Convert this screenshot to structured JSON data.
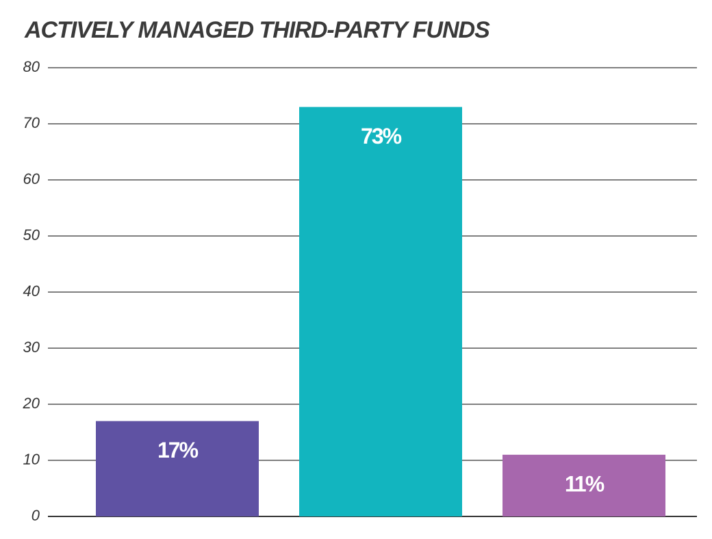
{
  "chart_data": {
    "type": "bar",
    "title": "ACTIVELY MANAGED THIRD-PARTY FUNDS",
    "categories": [
      null,
      null,
      null
    ],
    "values": [
      17,
      73,
      11
    ],
    "value_labels": [
      "17%",
      "73%",
      "11%"
    ],
    "colors": [
      "#5f52a3",
      "#12b5bf",
      "#a767ad"
    ],
    "ylim": [
      0,
      80
    ],
    "yticks": [
      0,
      10,
      20,
      30,
      40,
      50,
      60,
      70,
      80
    ],
    "grid": true
  }
}
